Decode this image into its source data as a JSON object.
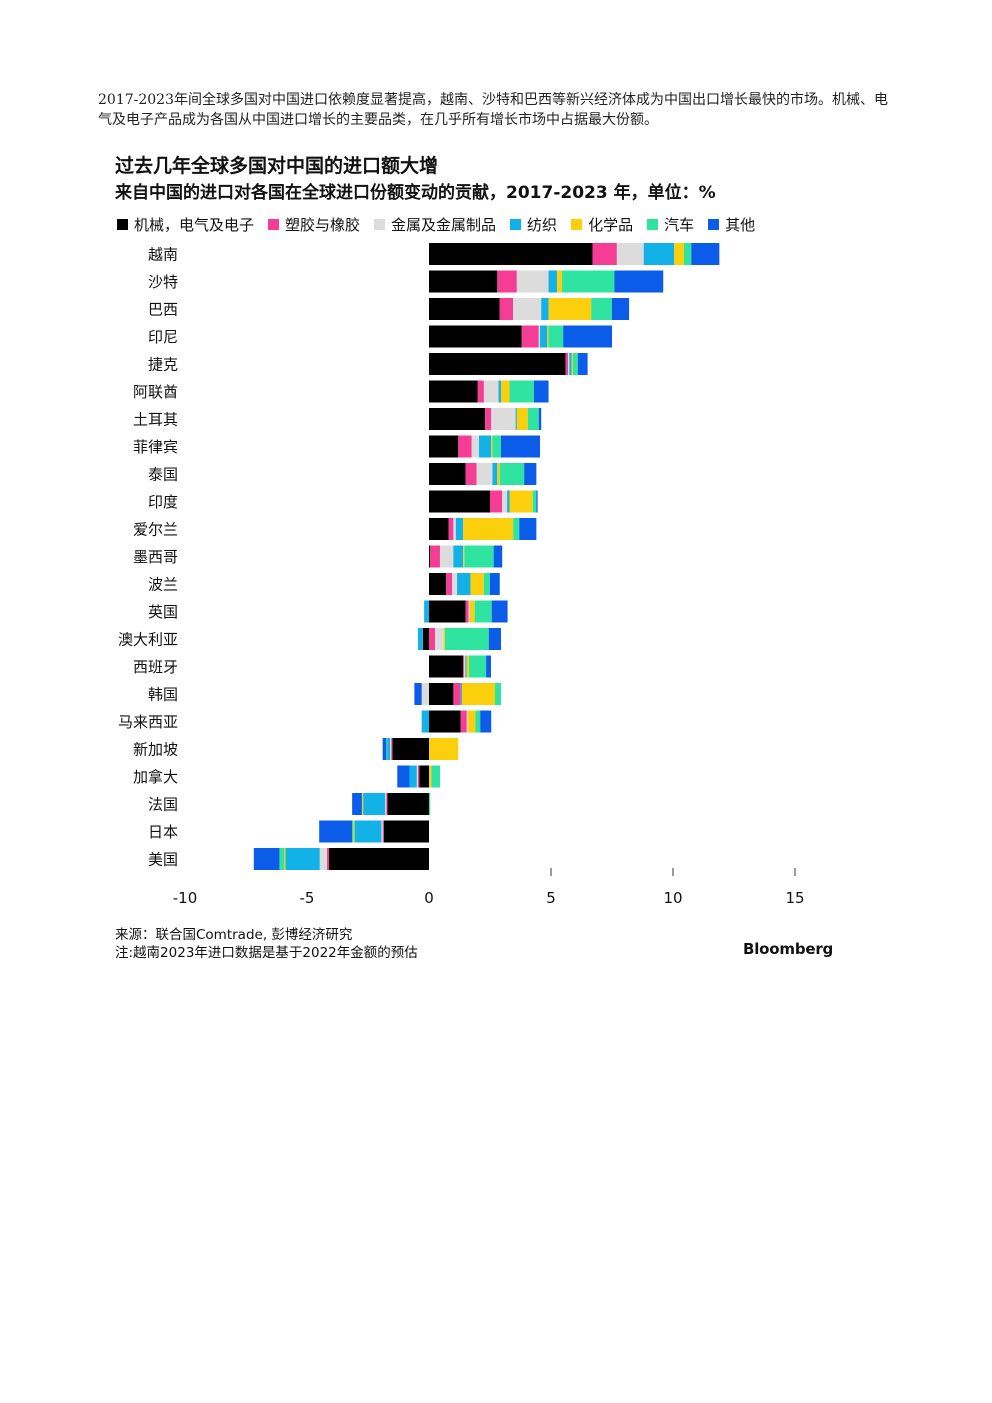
{
  "intro": "2017-2023年间全球多国对中国进口依赖度显著提高，越南、沙特和巴西等新兴经济体成为中国出口增长最快的市场。机械、电气及电子产品成为各国从中国进口增长的主要品类，在几乎所有增长市场中占据最大份额。",
  "chart_data": {
    "type": "bar",
    "orientation": "horizontal",
    "stacked": true,
    "title": "过去几年全球多国对中国的进口额大增",
    "subtitle": "来自中国的进口对各国在全球进口份额变动的贡献，2017-2023 年，单位：%",
    "xlim": [
      -10,
      15
    ],
    "xticks": [
      "-10",
      "-5",
      "0",
      "5",
      "10",
      "15"
    ],
    "xtick_values": [
      -10,
      -5,
      0,
      5,
      10,
      15
    ],
    "legend_position": "top-left",
    "categories": [
      "越南",
      "沙特",
      "巴西",
      "印尼",
      "捷克",
      "阿联酋",
      "土耳其",
      "菲律宾",
      "泰国",
      "印度",
      "爱尔兰",
      "墨西哥",
      "波兰",
      "英国",
      "澳大利亚",
      "西班牙",
      "韩国",
      "马来西亚",
      "新加坡",
      "加拿大",
      "法国",
      "日本",
      "美国"
    ],
    "series": [
      {
        "name": "机械，电气及电子",
        "color": "#000000",
        "values": [
          6.7,
          2.8,
          2.9,
          3.8,
          5.6,
          2.0,
          2.3,
          1.2,
          1.5,
          2.5,
          0.8,
          0.05,
          0.7,
          1.5,
          -0.25,
          1.4,
          1.0,
          1.3,
          -1.5,
          -0.4,
          -1.7,
          -1.85,
          -4.1
        ]
      },
      {
        "name": "塑胶与橡胶",
        "color": "#f53d96",
        "values": [
          1.0,
          0.8,
          0.55,
          0.7,
          0.1,
          0.25,
          0.25,
          0.55,
          0.45,
          0.5,
          0.2,
          0.4,
          0.25,
          0.12,
          0.25,
          0.04,
          0.3,
          0.25,
          -0.05,
          -0.05,
          -0.05,
          -0.05,
          -0.08
        ]
      },
      {
        "name": "金属及金属制品",
        "color": "#dcdcdc",
        "values": [
          1.1,
          1.3,
          1.15,
          0.05,
          0.05,
          0.6,
          1.0,
          0.3,
          0.65,
          0.2,
          0.1,
          0.55,
          0.2,
          0.05,
          0.35,
          0.05,
          -0.3,
          0.05,
          -0.05,
          -0.05,
          -0.05,
          -0.05,
          -0.3
        ]
      },
      {
        "name": "纺织",
        "color": "#12b2e8",
        "values": [
          1.25,
          0.35,
          0.3,
          0.3,
          0.1,
          0.1,
          0.05,
          0.5,
          0.2,
          0.1,
          0.3,
          0.4,
          0.55,
          -0.2,
          -0.2,
          0.05,
          0.05,
          -0.3,
          -0.1,
          -0.3,
          -0.9,
          -1.1,
          -1.4
        ]
      },
      {
        "name": "化学品",
        "color": "#fccf0c",
        "values": [
          0.4,
          0.2,
          1.75,
          0.05,
          0.05,
          0.35,
          0.45,
          0.05,
          0.1,
          0.95,
          2.05,
          0.05,
          0.55,
          0.2,
          0.05,
          0.1,
          1.35,
          0.3,
          1.2,
          0.1,
          -0.05,
          -0.05,
          -0.05
        ]
      },
      {
        "name": "汽车",
        "color": "#2ee4a0",
        "values": [
          0.3,
          2.15,
          0.85,
          0.6,
          0.2,
          1.0,
          0.45,
          0.35,
          1.0,
          0.15,
          0.25,
          1.2,
          0.25,
          0.7,
          1.8,
          0.7,
          0.25,
          0.2,
          -0.05,
          0.35,
          0.05,
          -0.05,
          -0.2
        ]
      },
      {
        "name": "其他",
        "color": "#0b5ce8",
        "values": [
          1.15,
          2.0,
          0.7,
          2.0,
          0.4,
          0.6,
          0.1,
          1.6,
          0.5,
          0.05,
          0.7,
          0.35,
          0.4,
          0.65,
          0.5,
          0.2,
          -0.3,
          0.45,
          -0.15,
          -0.5,
          -0.4,
          -1.35,
          -1.05
        ]
      }
    ]
  },
  "source": {
    "line1": "来源：联合国Comtrade, 彭博经济研究",
    "line2": "注:越南2023年进口数据是基于2022年金额的预估"
  },
  "brand": "Bloomberg"
}
